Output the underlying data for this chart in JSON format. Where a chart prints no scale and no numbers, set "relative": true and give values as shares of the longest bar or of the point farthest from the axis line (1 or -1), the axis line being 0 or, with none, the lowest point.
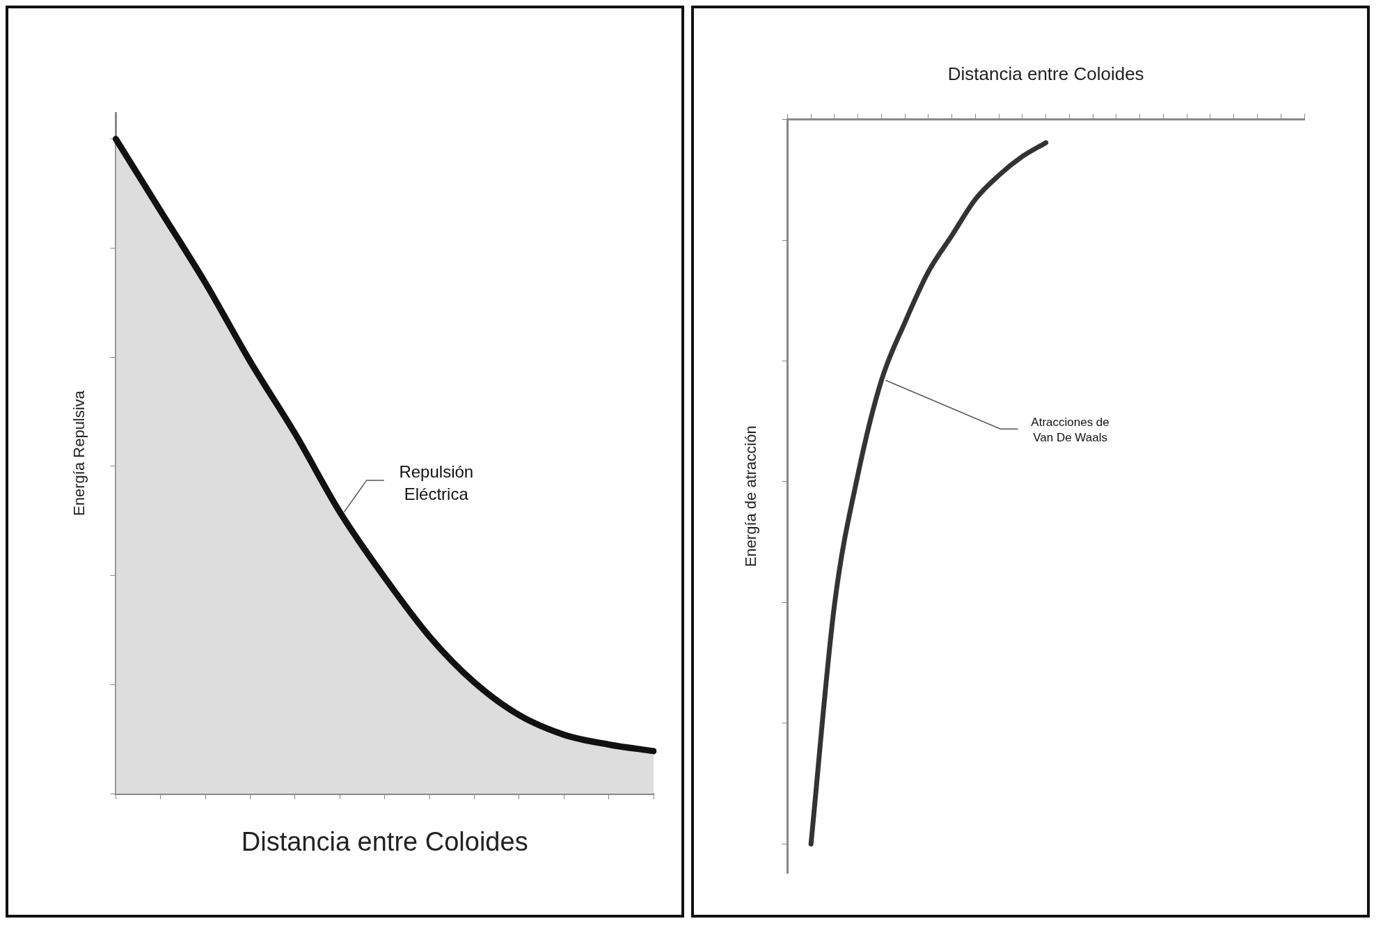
{
  "chart_data": [
    {
      "type": "area",
      "xlabel": "Distancia entre Coloides",
      "ylabel": "Energía Repulsiva",
      "relative": true,
      "categories": [
        null,
        null,
        null,
        null,
        null,
        null,
        null,
        null,
        null,
        null,
        null,
        null,
        null
      ],
      "series": [
        {
          "color": "#111111",
          "values": [
            1,
            0.89,
            0.78,
            0.66,
            0.55,
            0.43,
            0.33,
            0.24,
            0.17,
            0.12,
            0.09,
            0.075,
            0.065
          ]
        }
      ],
      "annotations": [
        "Repulsión\nEléctrica"
      ],
      "grid": false,
      "legend": false,
      "marker": "none"
    },
    {
      "type": "line",
      "xlabel": "Distancia entre Coloides",
      "ylabel": "Energía de atracción",
      "relative": true,
      "categories": [
        null,
        null,
        null,
        null,
        null,
        null,
        null,
        null,
        null,
        null,
        null,
        null,
        null,
        null,
        null,
        null,
        null,
        null,
        null,
        null,
        null,
        null,
        null
      ],
      "series": [
        {
          "color": "#333333",
          "values": [
            null,
            -1,
            -0.67,
            -0.49,
            -0.36,
            -0.28,
            -0.21,
            -0.16,
            -0.11,
            -0.077,
            -0.051,
            -0.032,
            null,
            null,
            null,
            null,
            null,
            null,
            null,
            null,
            null,
            null,
            null
          ]
        }
      ],
      "annotations": [
        "Atracciones de\nVan De Waals"
      ],
      "grid": false,
      "legend": false,
      "marker": "none"
    }
  ]
}
